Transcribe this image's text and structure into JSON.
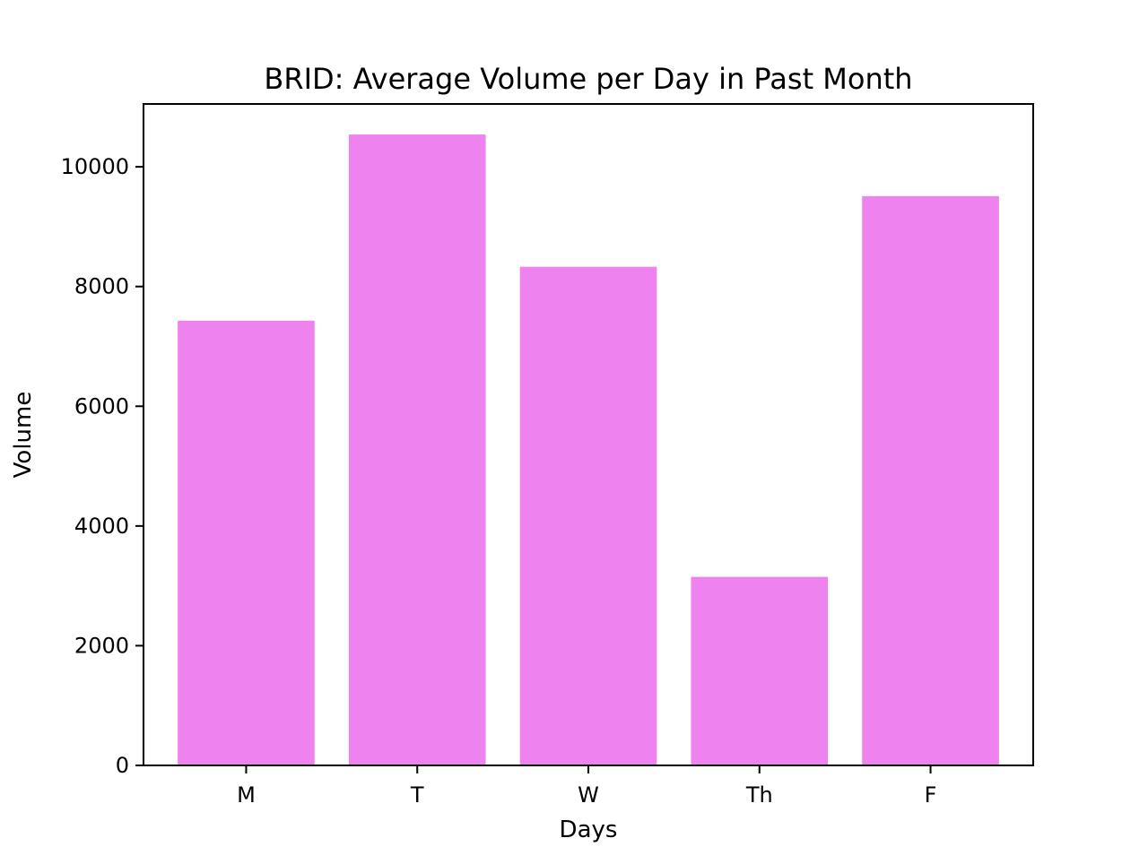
{
  "chart_data": {
    "type": "bar",
    "title": "BRID: Average Volume per Day in Past Month",
    "xlabel": "Days",
    "ylabel": "Volume",
    "categories": [
      "M",
      "T",
      "W",
      "Th",
      "F"
    ],
    "values": [
      7430,
      10540,
      8330,
      3150,
      9510
    ],
    "ylim": [
      0,
      11050
    ],
    "yticks": [
      0,
      2000,
      4000,
      6000,
      8000,
      10000
    ],
    "ytick_labels": [
      "0",
      "2000",
      "4000",
      "6000",
      "8000",
      "10000"
    ],
    "bar_color": "#EE82EE",
    "grid": false,
    "legend": "none"
  }
}
